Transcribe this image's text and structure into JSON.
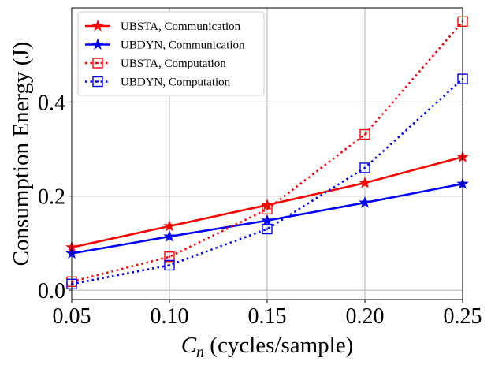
{
  "chart_data": {
    "type": "line",
    "xlabel_symbol": "C",
    "xlabel_subscript": "n",
    "xlabel_unit": " (cycles/sample)",
    "ylabel": "Consumption Energy (J)",
    "x": [
      0.05,
      0.1,
      0.15,
      0.2,
      0.25
    ],
    "xlim": [
      0.05,
      0.25
    ],
    "ylim": [
      -0.02,
      0.6
    ],
    "xticks": [
      "0.05",
      "0.10",
      "0.15",
      "0.20",
      "0.25"
    ],
    "xtick_values": [
      0.05,
      0.1,
      0.15,
      0.2,
      0.25
    ],
    "yticks": [
      "0.0",
      "0.2",
      "0.4"
    ],
    "ytick_values": [
      0.0,
      0.2,
      0.4
    ],
    "grid": true,
    "legend_position": "top-left",
    "series": [
      {
        "name": "UBSTA, Communication",
        "color": "#ff0000",
        "style": "solid",
        "marker": "star",
        "values": [
          0.091,
          0.136,
          0.181,
          0.228,
          0.283
        ]
      },
      {
        "name": "UBDYN, Communication",
        "color": "#0000ff",
        "style": "solid",
        "marker": "star",
        "values": [
          0.078,
          0.114,
          0.148,
          0.186,
          0.226
        ]
      },
      {
        "name": "UBSTA, Computation",
        "color": "#ff0000",
        "style": "dotted",
        "marker": "square",
        "values": [
          0.018,
          0.071,
          0.172,
          0.331,
          0.571
        ]
      },
      {
        "name": "UBDYN, Computation",
        "color": "#0000ff",
        "style": "dotted",
        "marker": "square",
        "values": [
          0.013,
          0.053,
          0.13,
          0.26,
          0.449
        ]
      }
    ]
  }
}
